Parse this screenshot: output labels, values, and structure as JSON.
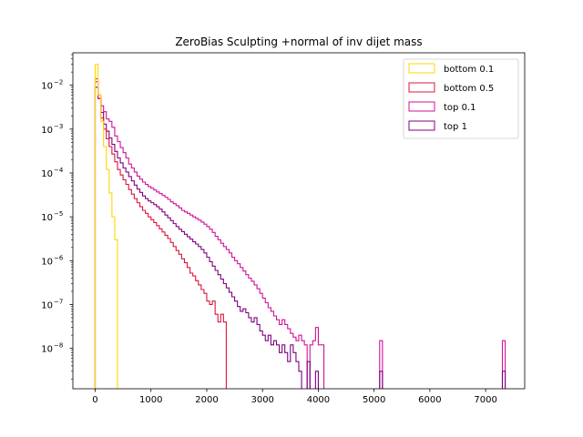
{
  "chart_data": {
    "type": "histogram-step",
    "title": "ZeroBias Sculpting +normal of inv dijet mass",
    "xlabel": "",
    "ylabel": "",
    "xlim": [
      -400,
      7700
    ],
    "ylim": [
      1.2e-09,
      0.055
    ],
    "yscale": "log",
    "xticks": [
      0,
      1000,
      2000,
      3000,
      4000,
      5000,
      6000,
      7000
    ],
    "yticks": [
      1e-08,
      1e-07,
      1e-06,
      1e-05,
      0.0001,
      0.001,
      0.01
    ],
    "ytick_labels": [
      {
        "base": "10",
        "exp": "−8"
      },
      {
        "base": "10",
        "exp": "−7"
      },
      {
        "base": "10",
        "exp": "−6"
      },
      {
        "base": "10",
        "exp": "−5"
      },
      {
        "base": "10",
        "exp": "−4"
      },
      {
        "base": "10",
        "exp": "−3"
      },
      {
        "base": "10",
        "exp": "−2"
      }
    ],
    "legend_position": "top-right",
    "grid": false,
    "series": [
      {
        "name": "top 0.1",
        "color": "#d1129a",
        "points": [
          [
            0,
            0.012
          ],
          [
            50,
            0.006
          ],
          [
            100,
            0.0034
          ],
          [
            150,
            0.0025
          ],
          [
            200,
            0.0017
          ],
          [
            250,
            0.0015
          ],
          [
            300,
            0.0011
          ],
          [
            350,
            0.0007
          ],
          [
            400,
            0.00052
          ],
          [
            450,
            0.00038
          ],
          [
            500,
            0.00029
          ],
          [
            550,
            0.00022
          ],
          [
            600,
            0.00016
          ],
          [
            650,
            0.00013
          ],
          [
            700,
            0.000105
          ],
          [
            750,
            8.5e-05
          ],
          [
            800,
            7.2e-05
          ],
          [
            850,
            6.2e-05
          ],
          [
            900,
            5.5e-05
          ],
          [
            950,
            4.9e-05
          ],
          [
            1000,
            4.5e-05
          ],
          [
            1050,
            4.1e-05
          ],
          [
            1100,
            3.7e-05
          ],
          [
            1150,
            3.4e-05
          ],
          [
            1200,
            3.1e-05
          ],
          [
            1250,
            2.8e-05
          ],
          [
            1300,
            2.5e-05
          ],
          [
            1350,
            2.2e-05
          ],
          [
            1400,
            2e-05
          ],
          [
            1450,
            1.8e-05
          ],
          [
            1500,
            1.6e-05
          ],
          [
            1550,
            1.4e-05
          ],
          [
            1600,
            1.3e-05
          ],
          [
            1650,
            1.2e-05
          ],
          [
            1700,
            1.1e-05
          ],
          [
            1750,
            1e-05
          ],
          [
            1800,
            9.2e-06
          ],
          [
            1850,
            8.4e-06
          ],
          [
            1900,
            7.6e-06
          ],
          [
            1950,
            6.8e-06
          ],
          [
            2000,
            6e-06
          ],
          [
            2050,
            5.2e-06
          ],
          [
            2100,
            4.4e-06
          ],
          [
            2150,
            3.6e-06
          ],
          [
            2200,
            3e-06
          ],
          [
            2250,
            2.5e-06
          ],
          [
            2300,
            2.1e-06
          ],
          [
            2350,
            1.8e-06
          ],
          [
            2400,
            1.5e-06
          ],
          [
            2450,
            1.2e-06
          ],
          [
            2500,
            1e-06
          ],
          [
            2550,
            8.5e-07
          ],
          [
            2600,
            7e-07
          ],
          [
            2650,
            5.8e-07
          ],
          [
            2700,
            4.8e-07
          ],
          [
            2750,
            4e-07
          ],
          [
            2800,
            3.4e-07
          ],
          [
            2850,
            2.8e-07
          ],
          [
            2900,
            2.3e-07
          ],
          [
            2950,
            1.8e-07
          ],
          [
            3000,
            1.4e-07
          ],
          [
            3050,
            1.1e-07
          ],
          [
            3100,
            8.5e-08
          ],
          [
            3150,
            7e-08
          ],
          [
            3200,
            5.5e-08
          ],
          [
            3250,
            4.5e-08
          ],
          [
            3300,
            3.5e-08
          ],
          [
            3350,
            4.5e-08
          ],
          [
            3400,
            3.5e-08
          ],
          [
            3450,
            2.8e-08
          ],
          [
            3500,
            2.2e-08
          ],
          [
            3550,
            1.8e-08
          ],
          [
            3600,
            1.5e-08
          ],
          [
            3650,
            2e-08
          ],
          [
            3700,
            1.5e-08
          ],
          [
            3750,
            1.2e-08
          ],
          [
            3800,
            0
          ],
          [
            3850,
            1.2e-08
          ],
          [
            3900,
            1.5e-08
          ],
          [
            3950,
            3e-08
          ],
          [
            4000,
            1.2e-08
          ],
          [
            4050,
            1.2e-08
          ],
          [
            4100,
            0
          ],
          [
            5100,
            1.5e-08
          ],
          [
            5150,
            0
          ],
          [
            7300,
            1.5e-08
          ],
          [
            7350,
            0
          ]
        ]
      },
      {
        "name": "top 1",
        "color": "#800080",
        "points": [
          [
            0,
            0.009
          ],
          [
            50,
            0.005
          ],
          [
            100,
            0.0024
          ],
          [
            150,
            0.0013
          ],
          [
            200,
            0.0009
          ],
          [
            250,
            0.00063
          ],
          [
            300,
            0.00045
          ],
          [
            350,
            0.00031
          ],
          [
            400,
            0.00022
          ],
          [
            450,
            0.00017
          ],
          [
            500,
            0.00013
          ],
          [
            550,
            0.000105
          ],
          [
            600,
            8.3e-05
          ],
          [
            650,
            6.6e-05
          ],
          [
            700,
            5.3e-05
          ],
          [
            750,
            4.3e-05
          ],
          [
            800,
            3.6e-05
          ],
          [
            850,
            3e-05
          ],
          [
            900,
            2.6e-05
          ],
          [
            950,
            2.3e-05
          ],
          [
            1000,
            2.1e-05
          ],
          [
            1050,
            1.9e-05
          ],
          [
            1100,
            1.7e-05
          ],
          [
            1150,
            1.5e-05
          ],
          [
            1200,
            1.3e-05
          ],
          [
            1250,
            1.1e-05
          ],
          [
            1300,
            9.5e-06
          ],
          [
            1350,
            8.2e-06
          ],
          [
            1400,
            7e-06
          ],
          [
            1450,
            6e-06
          ],
          [
            1500,
            5.2e-06
          ],
          [
            1550,
            4.6e-06
          ],
          [
            1600,
            4e-06
          ],
          [
            1650,
            3.5e-06
          ],
          [
            1700,
            3.1e-06
          ],
          [
            1750,
            2.7e-06
          ],
          [
            1800,
            2.4e-06
          ],
          [
            1850,
            2.1e-06
          ],
          [
            1900,
            1.8e-06
          ],
          [
            1950,
            1.5e-06
          ],
          [
            2000,
            1.2e-06
          ],
          [
            2050,
            9.5e-07
          ],
          [
            2100,
            7.5e-07
          ],
          [
            2150,
            6e-07
          ],
          [
            2200,
            4.8e-07
          ],
          [
            2250,
            3.8e-07
          ],
          [
            2300,
            3e-07
          ],
          [
            2350,
            2.4e-07
          ],
          [
            2400,
            1.9e-07
          ],
          [
            2450,
            1.5e-07
          ],
          [
            2500,
            1.2e-07
          ],
          [
            2550,
            9e-08
          ],
          [
            2600,
            7e-08
          ],
          [
            2650,
            8e-08
          ],
          [
            2700,
            6.5e-08
          ],
          [
            2750,
            5e-08
          ],
          [
            2800,
            4e-08
          ],
          [
            2850,
            5e-08
          ],
          [
            2900,
            3.5e-08
          ],
          [
            2950,
            2.5e-08
          ],
          [
            3000,
            2e-08
          ],
          [
            3050,
            1.5e-08
          ],
          [
            3100,
            2e-08
          ],
          [
            3150,
            1.2e-08
          ],
          [
            3200,
            1.5e-08
          ],
          [
            3250,
            1.2e-08
          ],
          [
            3300,
            8e-09
          ],
          [
            3350,
            1.2e-08
          ],
          [
            3400,
            8e-09
          ],
          [
            3450,
            5e-09
          ],
          [
            3500,
            1.2e-08
          ],
          [
            3550,
            8e-09
          ],
          [
            3600,
            5e-09
          ],
          [
            3650,
            3e-09
          ],
          [
            3700,
            0
          ],
          [
            3800,
            5e-09
          ],
          [
            3850,
            0
          ],
          [
            3950,
            3e-09
          ],
          [
            4000,
            0
          ],
          [
            5100,
            3e-09
          ],
          [
            5150,
            0
          ],
          [
            7300,
            3e-09
          ],
          [
            7350,
            0
          ]
        ]
      },
      {
        "name": "bottom 0.5",
        "color": "#dc143c",
        "points": [
          [
            0,
            0.014
          ],
          [
            50,
            0.005
          ],
          [
            100,
            0.0018
          ],
          [
            150,
            0.001
          ],
          [
            200,
            0.0006
          ],
          [
            250,
            0.0004
          ],
          [
            300,
            0.00027
          ],
          [
            350,
            0.00018
          ],
          [
            400,
            0.00012
          ],
          [
            450,
            9e-05
          ],
          [
            500,
            7e-05
          ],
          [
            550,
            5.5e-05
          ],
          [
            600,
            4.2e-05
          ],
          [
            650,
            3.3e-05
          ],
          [
            700,
            2.6e-05
          ],
          [
            750,
            2.1e-05
          ],
          [
            800,
            1.7e-05
          ],
          [
            850,
            1.4e-05
          ],
          [
            900,
            1.2e-05
          ],
          [
            950,
            1e-05
          ],
          [
            1000,
            8.6e-06
          ],
          [
            1050,
            7.4e-06
          ],
          [
            1100,
            6.3e-06
          ],
          [
            1150,
            5.3e-06
          ],
          [
            1200,
            4.5e-06
          ],
          [
            1250,
            3.8e-06
          ],
          [
            1300,
            3.2e-06
          ],
          [
            1350,
            2.6e-06
          ],
          [
            1400,
            2.1e-06
          ],
          [
            1450,
            1.7e-06
          ],
          [
            1500,
            1.4e-06
          ],
          [
            1550,
            1.1e-06
          ],
          [
            1600,
            9e-07
          ],
          [
            1650,
            7e-07
          ],
          [
            1700,
            5.2e-07
          ],
          [
            1750,
            4.5e-07
          ],
          [
            1800,
            3.5e-07
          ],
          [
            1850,
            2.8e-07
          ],
          [
            1900,
            2.2e-07
          ],
          [
            1950,
            1.8e-07
          ],
          [
            2000,
            1.2e-07
          ],
          [
            2050,
            1e-07
          ],
          [
            2100,
            1.2e-07
          ],
          [
            2150,
            6e-08
          ],
          [
            2200,
            4e-08
          ],
          [
            2250,
            6e-08
          ],
          [
            2300,
            4e-08
          ],
          [
            2350,
            0
          ],
          [
            2600,
            0
          ]
        ]
      },
      {
        "name": "bottom 0.1",
        "color": "#ffd700",
        "points": [
          [
            0,
            0.03
          ],
          [
            50,
            0.006
          ],
          [
            100,
            0.0015
          ],
          [
            150,
            0.0004
          ],
          [
            200,
            0.00012
          ],
          [
            250,
            3.5e-05
          ],
          [
            300,
            1e-05
          ],
          [
            350,
            3e-06
          ],
          [
            400,
            0
          ],
          [
            650,
            0
          ]
        ]
      }
    ]
  }
}
